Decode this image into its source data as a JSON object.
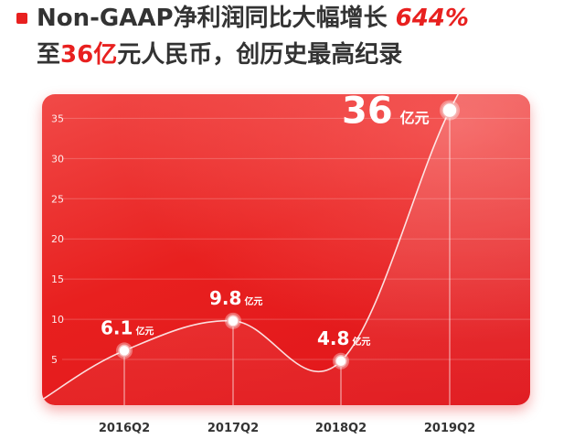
{
  "headline": {
    "line1_text": "Non-GAAP净利润同比大幅增长 ",
    "line1_accent": "644%",
    "line2_pre": "至",
    "line2_accent": "36亿",
    "line2_post": "元人民币，创历史最高纪录"
  },
  "colors": {
    "accent": "#e8201f",
    "card": "#e8201f",
    "text": "#333333"
  },
  "chart_data": {
    "type": "line",
    "categories": [
      "2016Q2",
      "2017Q2",
      "2018Q2",
      "2019Q2"
    ],
    "values": [
      6.1,
      9.8,
      4.8,
      36
    ],
    "data_labels": [
      "6.1",
      "9.8",
      "4.8",
      "36"
    ],
    "unit_label": "亿元",
    "y_ticks": [
      5,
      10,
      15,
      20,
      25,
      30,
      35
    ],
    "ylim": [
      0,
      38
    ],
    "grid": true,
    "title": "",
    "xlabel": "",
    "ylabel": ""
  }
}
